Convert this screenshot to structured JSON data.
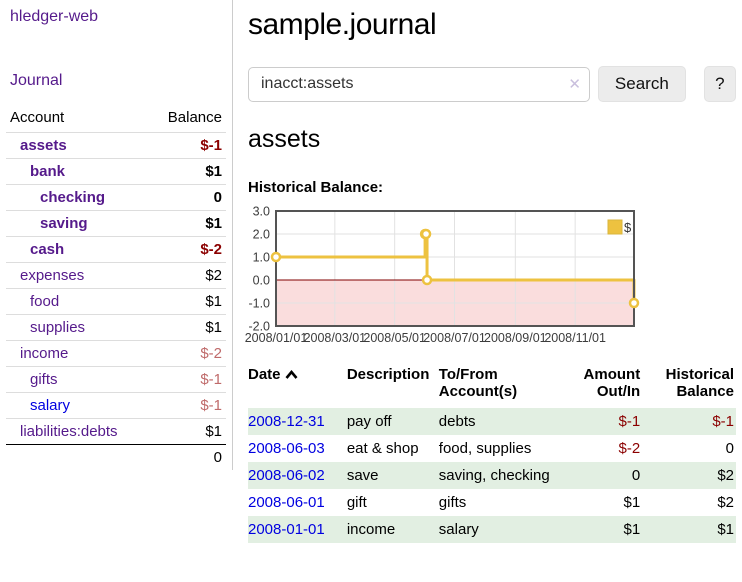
{
  "app": {
    "title": "hledger-web"
  },
  "sidebar": {
    "journal_label": "Journal",
    "accounts_header": {
      "account": "Account",
      "balance": "Balance"
    },
    "accounts": [
      {
        "name": "assets",
        "balance": "$-1"
      },
      {
        "name": "bank",
        "balance": "$1"
      },
      {
        "name": "checking",
        "balance": "0"
      },
      {
        "name": "saving",
        "balance": "$1"
      },
      {
        "name": "cash",
        "balance": "$-2"
      },
      {
        "name": "expenses",
        "balance": "$2"
      },
      {
        "name": "food",
        "balance": "$1"
      },
      {
        "name": "supplies",
        "balance": "$1"
      },
      {
        "name": "income",
        "balance": "$-2"
      },
      {
        "name": "gifts",
        "balance": "$-1"
      },
      {
        "name": "salary",
        "balance": "$-1"
      },
      {
        "name": "liabilities:debts",
        "balance": "$1"
      }
    ],
    "total": "0"
  },
  "main": {
    "title": "sample.journal",
    "search": {
      "value": "inacct:assets",
      "clear_icon": "✕",
      "button_label": "Search",
      "help_label": "?"
    },
    "account_heading": "assets",
    "chart_label": "Historical Balance:"
  },
  "chart_data": {
    "type": "line",
    "title": "Historical Balance",
    "xlim": [
      "2008-01-01",
      "2008-12-31"
    ],
    "ylim": [
      -2,
      3
    ],
    "y_ticks": [
      3,
      2,
      1,
      0,
      -1,
      -2
    ],
    "x_ticks": [
      "2008/01/01",
      "2008/03/01",
      "2008/05/01",
      "2008/07/01",
      "2008/09/01",
      "2008/11/01"
    ],
    "grid": true,
    "legend_position": "top-right",
    "series": [
      {
        "name": "$",
        "color": "#edc240",
        "step": true,
        "points": [
          [
            "2008-01-01",
            1
          ],
          [
            "2008-06-01",
            2
          ],
          [
            "2008-06-02",
            2
          ],
          [
            "2008-06-03",
            0
          ],
          [
            "2008-12-31",
            -1
          ]
        ]
      }
    ],
    "colors": {
      "zero_line": "#800000",
      "negative_region": "#fadddd",
      "grid": "#e2e2e2",
      "border": "#545454"
    }
  },
  "register": {
    "headers": {
      "date": "Date",
      "description": "Description",
      "tofrom": "To/From Account(s)",
      "amount": "Amount Out/In",
      "balance": "Historical Balance"
    },
    "rows": [
      {
        "date": "2008-12-31",
        "description": "pay off",
        "tofrom": "debts",
        "amount": "$-1",
        "balance": "$-1"
      },
      {
        "date": "2008-06-03",
        "description": "eat & shop",
        "tofrom": "food, supplies",
        "amount": "$-2",
        "balance": "0"
      },
      {
        "date": "2008-06-02",
        "description": "save",
        "tofrom": "saving, checking",
        "amount": "0",
        "balance": "$2"
      },
      {
        "date": "2008-06-01",
        "description": "gift",
        "tofrom": "gifts",
        "amount": "$1",
        "balance": "$2"
      },
      {
        "date": "2008-01-01",
        "description": "income",
        "tofrom": "salary",
        "amount": "$1",
        "balance": "$1"
      }
    ]
  }
}
